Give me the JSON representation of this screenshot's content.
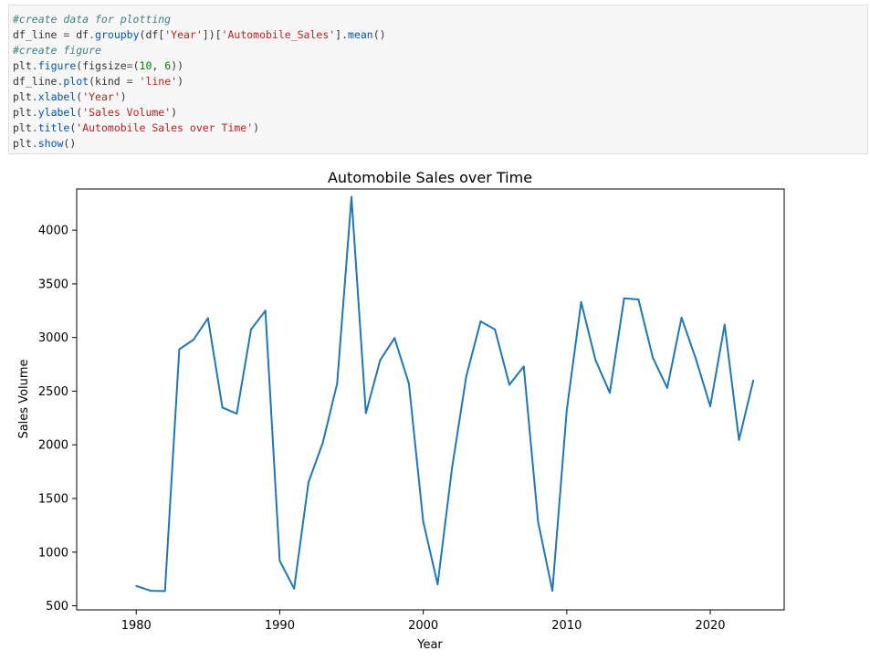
{
  "notebook": {
    "code_lines": [
      [
        {
          "t": "#create data for plotting",
          "c": "comment"
        }
      ],
      [
        {
          "t": "df_line",
          "c": ""
        },
        {
          "t": " = ",
          "c": "op"
        },
        {
          "t": "df",
          "c": ""
        },
        {
          "t": ".",
          "c": "op"
        },
        {
          "t": "groupby",
          "c": "fn"
        },
        {
          "t": "(df[",
          "c": ""
        },
        {
          "t": "'Year'",
          "c": "str"
        },
        {
          "t": "])[",
          "c": ""
        },
        {
          "t": "'Automobile_Sales'",
          "c": "str"
        },
        {
          "t": "].",
          "c": ""
        },
        {
          "t": "mean",
          "c": "fn"
        },
        {
          "t": "()",
          "c": ""
        }
      ],
      [
        {
          "t": "#create figure",
          "c": "comment"
        }
      ],
      [
        {
          "t": "plt",
          "c": ""
        },
        {
          "t": ".",
          "c": "op"
        },
        {
          "t": "figure",
          "c": "fn"
        },
        {
          "t": "(figsize",
          "c": ""
        },
        {
          "t": "=",
          "c": "op"
        },
        {
          "t": "(",
          "c": ""
        },
        {
          "t": "10",
          "c": "num"
        },
        {
          "t": ", ",
          "c": ""
        },
        {
          "t": "6",
          "c": "num"
        },
        {
          "t": "))",
          "c": ""
        }
      ],
      [
        {
          "t": "df_line",
          "c": ""
        },
        {
          "t": ".",
          "c": "op"
        },
        {
          "t": "plot",
          "c": "fn"
        },
        {
          "t": "(kind ",
          "c": ""
        },
        {
          "t": "=",
          "c": "op"
        },
        {
          "t": " ",
          "c": ""
        },
        {
          "t": "'line'",
          "c": "str"
        },
        {
          "t": ")",
          "c": ""
        }
      ],
      [
        {
          "t": "plt",
          "c": ""
        },
        {
          "t": ".",
          "c": "op"
        },
        {
          "t": "xlabel",
          "c": "fn"
        },
        {
          "t": "(",
          "c": ""
        },
        {
          "t": "'Year'",
          "c": "str"
        },
        {
          "t": ")",
          "c": ""
        }
      ],
      [
        {
          "t": "plt",
          "c": ""
        },
        {
          "t": ".",
          "c": "op"
        },
        {
          "t": "ylabel",
          "c": "fn"
        },
        {
          "t": "(",
          "c": ""
        },
        {
          "t": "'Sales Volume'",
          "c": "str"
        },
        {
          "t": ")",
          "c": ""
        }
      ],
      [
        {
          "t": "plt",
          "c": ""
        },
        {
          "t": ".",
          "c": "op"
        },
        {
          "t": "title",
          "c": "fn"
        },
        {
          "t": "(",
          "c": ""
        },
        {
          "t": "'Automobile Sales over Time'",
          "c": "str"
        },
        {
          "t": ")",
          "c": ""
        }
      ],
      [
        {
          "t": "plt",
          "c": ""
        },
        {
          "t": ".",
          "c": "op"
        },
        {
          "t": "show",
          "c": "fn"
        },
        {
          "t": "()",
          "c": ""
        }
      ]
    ]
  },
  "chart_data": {
    "type": "line",
    "title": "Automobile Sales over Time",
    "xlabel": "Year",
    "ylabel": "Sales Volume",
    "line_color": "#1f77b4",
    "xlim": [
      1975.85,
      2025.15
    ],
    "ylim": [
      462,
      4384
    ],
    "x_ticks": [
      1980,
      1990,
      2000,
      2010,
      2020
    ],
    "y_ticks": [
      500,
      1000,
      1500,
      2000,
      2500,
      3000,
      3500,
      4000
    ],
    "grid": false,
    "x": [
      1980,
      1981,
      1982,
      1983,
      1984,
      1985,
      1986,
      1987,
      1988,
      1989,
      1990,
      1991,
      1992,
      1993,
      1994,
      1995,
      1996,
      1997,
      1998,
      1999,
      2000,
      2001,
      2002,
      2003,
      2004,
      2005,
      2006,
      2007,
      2008,
      2009,
      2010,
      2011,
      2012,
      2013,
      2014,
      2015,
      2016,
      2017,
      2018,
      2019,
      2020,
      2021,
      2022,
      2023
    ],
    "values": [
      685,
      640,
      637,
      2890,
      2980,
      3180,
      2348,
      2290,
      3075,
      3250,
      920,
      660,
      1650,
      2020,
      2570,
      4310,
      2295,
      2790,
      2995,
      2570,
      1285,
      700,
      1780,
      2640,
      3150,
      3075,
      2560,
      2730,
      1285,
      640,
      2320,
      3330,
      2790,
      2485,
      3365,
      3355,
      2810,
      2530,
      3185,
      2800,
      2360,
      3120,
      2045,
      2600
    ]
  }
}
